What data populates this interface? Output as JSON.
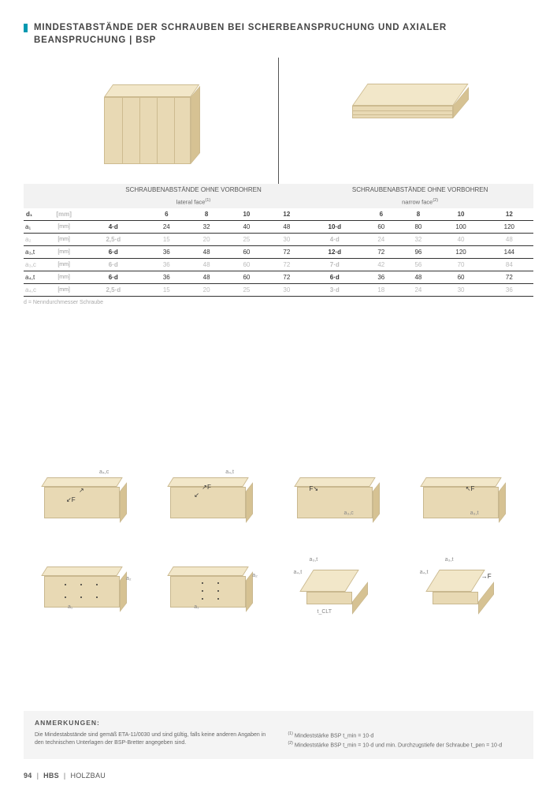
{
  "title": "MINDESTABSTÄNDE DER SCHRAUBEN BEI SCHERBEANSPRUCHUNG UND AXIALER BEANSPRUCHUNG | BSP",
  "accent_color": "#0099b0",
  "table": {
    "header_group_left": "SCHRAUBENABSTÄNDE OHNE VORBOHREN",
    "header_group_right": "SCHRAUBENABSTÄNDE OHNE VORBOHREN",
    "sub_left": "lateral face",
    "sub_left_sup": "(1)",
    "sub_right": "narrow face",
    "sub_right_sup": "(2)",
    "d1_label": "d₁",
    "unit_mm": "[mm]",
    "col_values": [
      "6",
      "8",
      "10",
      "12",
      "6",
      "8",
      "10",
      "12"
    ],
    "rows": [
      {
        "sym": "a₁",
        "unit": "[mm]",
        "mL": "4·d",
        "l": [
          "24",
          "32",
          "40",
          "48"
        ],
        "mR": "10·d",
        "r": [
          "60",
          "80",
          "100",
          "120"
        ],
        "lite": false
      },
      {
        "sym": "a₂",
        "unit": "[mm]",
        "mL": "2,5·d",
        "l": [
          "15",
          "20",
          "25",
          "30"
        ],
        "mR": "4·d",
        "r": [
          "24",
          "32",
          "40",
          "48"
        ],
        "lite": true
      },
      {
        "sym": "a₃,t",
        "unit": "[mm]",
        "mL": "6·d",
        "l": [
          "36",
          "48",
          "60",
          "72"
        ],
        "mR": "12·d",
        "r": [
          "72",
          "96",
          "120",
          "144"
        ],
        "lite": false
      },
      {
        "sym": "a₃,c",
        "unit": "[mm]",
        "mL": "6·d",
        "l": [
          "36",
          "48",
          "60",
          "72"
        ],
        "mR": "7·d",
        "r": [
          "42",
          "56",
          "70",
          "84"
        ],
        "lite": true
      },
      {
        "sym": "a₄,t",
        "unit": "[mm]",
        "mL": "6·d",
        "l": [
          "36",
          "48",
          "60",
          "72"
        ],
        "mR": "6·d",
        "r": [
          "36",
          "48",
          "60",
          "72"
        ],
        "lite": false
      },
      {
        "sym": "a₄,c",
        "unit": "[mm]",
        "mL": "2,5·d",
        "l": [
          "15",
          "20",
          "25",
          "30"
        ],
        "mR": "3·d",
        "r": [
          "18",
          "24",
          "30",
          "36"
        ],
        "lite": true
      }
    ],
    "footnote": "d = Nenndurchmesser Schraube"
  },
  "diagrams": {
    "labels": [
      "a₄,c",
      "a₄,t",
      "a₃,c",
      "a₃,t",
      "a₂",
      "a₁",
      "a₂",
      "a₁",
      "a₃,t",
      "a₄,t",
      "t_CLT",
      "a₃,t",
      "a₄,t"
    ]
  },
  "notes": {
    "title": "ANMERKUNGEN:",
    "left": "Die Mindestabstände sind gemäß ETA-11/0030 und sind gültig, falls keine anderen Angaben in den technischen Unterlagen der BSP-Bretter angegeben sind.",
    "right1_pre": "(1)",
    "right1": " Mindeststärke BSP t_min = 10·d",
    "right2_pre": "(2)",
    "right2": " Mindeststärke BSP t_min = 10·d und min. Durchzugstiefe der Schraube t_pen = 10·d"
  },
  "footer": {
    "page": "94",
    "brand": "HBS",
    "section": "HOLZBAU"
  }
}
